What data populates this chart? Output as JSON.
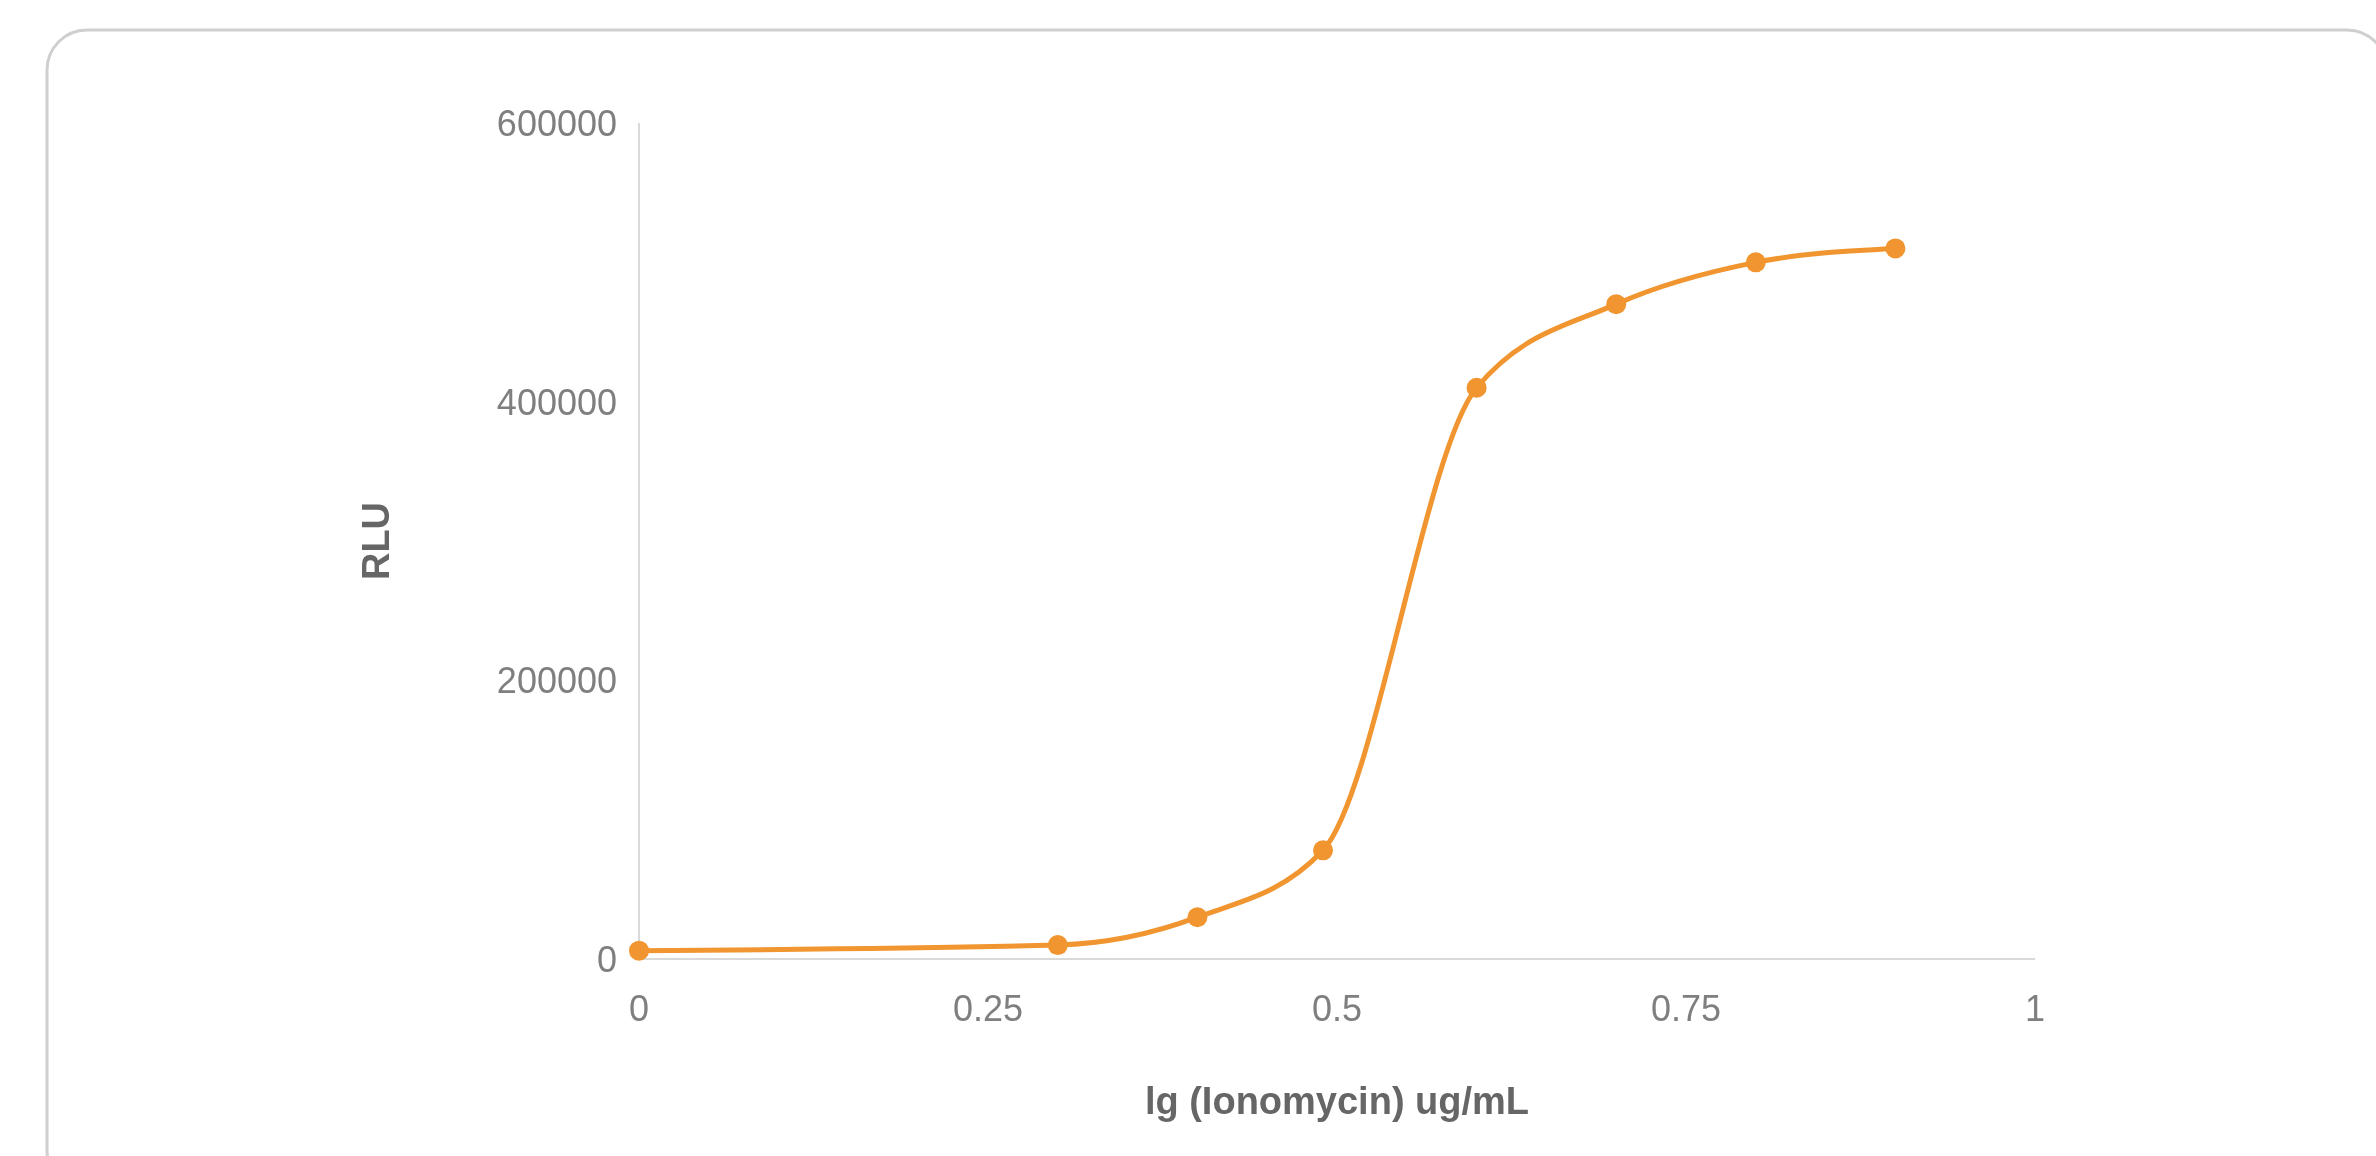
{
  "chart_data": {
    "type": "line",
    "xlabel": "lg (Ionomycin) ug/mL",
    "ylabel": "RLU",
    "x": [
      0,
      0.3,
      0.4,
      0.49,
      0.6,
      0.7,
      0.8,
      0.9
    ],
    "series": [
      {
        "color": "#f0952f",
        "values": [
          6000,
          10000,
          30000,
          78000,
          410000,
          470000,
          500000,
          510000
        ]
      }
    ],
    "xlim": [
      0,
      1
    ],
    "xticks": [
      0,
      0.25,
      0.5,
      0.75,
      1
    ],
    "ylim": [
      0,
      600000
    ],
    "yticks": [
      0,
      200000,
      400000,
      600000
    ],
    "marker": "circle",
    "line_style": "solid"
  }
}
